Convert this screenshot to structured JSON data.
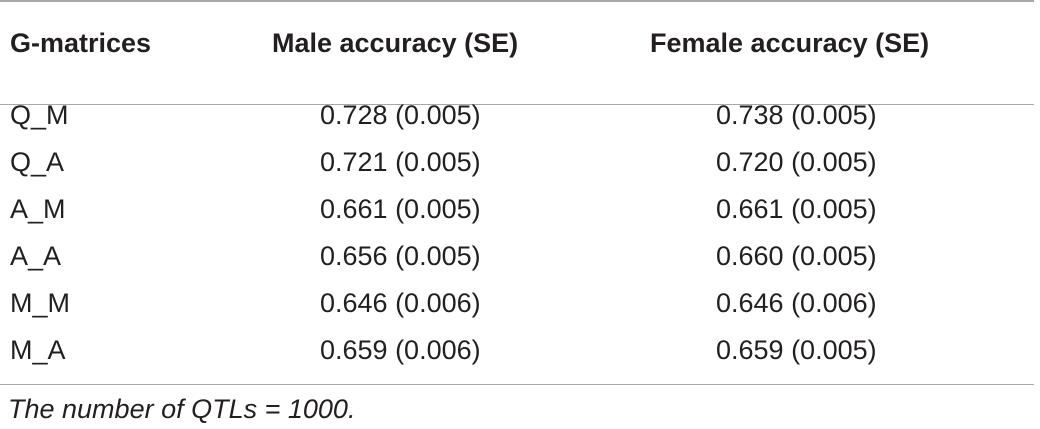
{
  "table": {
    "headers": {
      "col1": "G-matrices",
      "col2": "Male accuracy (SE)",
      "col3": "Female accuracy (SE)"
    },
    "rows": [
      {
        "name": "Q_M",
        "male": "0.728 (0.005)",
        "female": "0.738 (0.005)"
      },
      {
        "name": "Q_A",
        "male": "0.721 (0.005)",
        "female": "0.720 (0.005)"
      },
      {
        "name": "A_M",
        "male": "0.661 (0.005)",
        "female": "0.661 (0.005)"
      },
      {
        "name": "A_A",
        "male": "0.656 (0.005)",
        "female": "0.660 (0.005)"
      },
      {
        "name": "M_M",
        "male": "0.646 (0.006)",
        "female": "0.646 (0.006)"
      },
      {
        "name": "M_A",
        "male": "0.659 (0.006)",
        "female": "0.659 (0.005)"
      }
    ],
    "footnote": "The number of QTLs = 1000."
  }
}
